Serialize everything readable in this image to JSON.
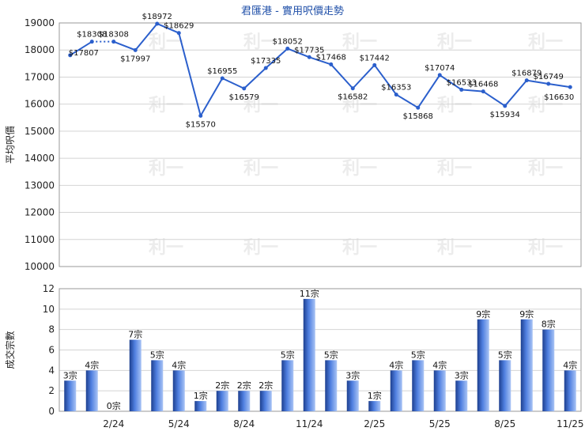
{
  "title": "君匯港 - 實用呎價走勢",
  "colors": {
    "line": "#2b5fcc",
    "bar_dark": "#1d3f8f",
    "bar_mid": "#4f7fe0",
    "bar_light": "#a9c4f5",
    "title": "#1f4fa8"
  },
  "watermark_text": "利一",
  "chart_data": [
    {
      "type": "line",
      "ylabel": "平均呎價",
      "ylim": [
        10000,
        19000
      ],
      "yticks": [
        10000,
        11000,
        12000,
        13000,
        14000,
        15000,
        16000,
        17000,
        18000,
        19000
      ],
      "grid": true,
      "point_label_prefix": "$",
      "values": [
        17807,
        18308,
        18308,
        17997,
        18972,
        18629,
        15570,
        16955,
        16579,
        17335,
        18052,
        17735,
        17468,
        16582,
        17442,
        16353,
        15868,
        17074,
        16533,
        16468,
        15934,
        16879,
        16749,
        16630
      ],
      "dashed_segment_index": 1
    },
    {
      "type": "bar",
      "ylabel": "成交宗數",
      "ylim": [
        0,
        12
      ],
      "yticks": [
        0,
        2,
        4,
        6,
        8,
        10,
        12
      ],
      "grid": true,
      "value_suffix": "宗",
      "values": [
        3,
        4,
        0,
        7,
        5,
        4,
        1,
        2,
        2,
        2,
        5,
        11,
        5,
        3,
        1,
        4,
        5,
        4,
        3,
        9,
        5,
        9,
        8,
        4
      ],
      "x_tick_labels": [
        {
          "index": 2,
          "label": "2/24"
        },
        {
          "index": 5,
          "label": "5/24"
        },
        {
          "index": 8,
          "label": "8/24"
        },
        {
          "index": 11,
          "label": "11/24"
        },
        {
          "index": 14,
          "label": "2/25"
        },
        {
          "index": 17,
          "label": "5/25"
        },
        {
          "index": 20,
          "label": "8/25"
        },
        {
          "index": 23,
          "label": "11/25"
        }
      ]
    }
  ]
}
